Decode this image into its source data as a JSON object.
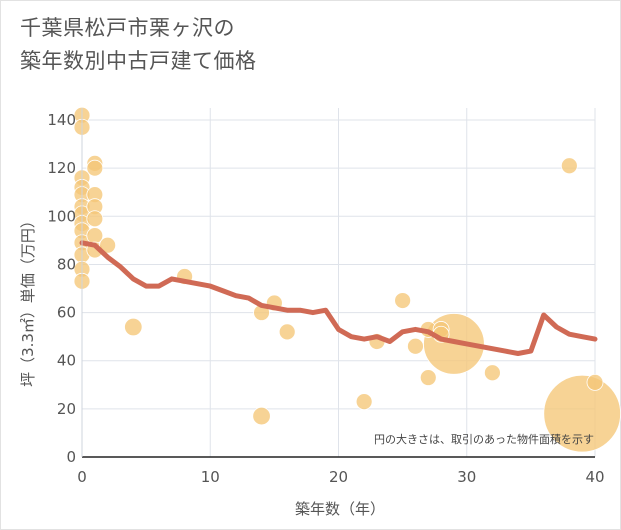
{
  "chart_data": {
    "type": "scatter",
    "title": "千葉県松戸市栗ヶ沢の\n築年数別中古戸建て価格",
    "xlabel": "築年数（年）",
    "ylabel": "坪（3.3㎡）単価（万円）",
    "xlim": [
      0,
      40
    ],
    "ylim": [
      0,
      145
    ],
    "xticks": [
      "0",
      "10",
      "20",
      "30",
      "40"
    ],
    "yticks": [
      "0",
      "20",
      "40",
      "60",
      "80",
      "100",
      "120",
      "140"
    ],
    "grid": true,
    "note": "円の大きさは、取引のあった物件面積を示す",
    "colors": {
      "bubble": "#f5c677",
      "line": "#d06a55",
      "grid": "#dfe3ea"
    },
    "series": [
      {
        "kind": "bubble",
        "points": [
          {
            "x": 0,
            "y": 142,
            "s": 1
          },
          {
            "x": 0,
            "y": 137,
            "s": 1
          },
          {
            "x": 0,
            "y": 116,
            "s": 1
          },
          {
            "x": 0,
            "y": 112,
            "s": 1
          },
          {
            "x": 0,
            "y": 109,
            "s": 1
          },
          {
            "x": 0,
            "y": 104,
            "s": 1
          },
          {
            "x": 0,
            "y": 101,
            "s": 1
          },
          {
            "x": 0,
            "y": 97,
            "s": 1
          },
          {
            "x": 0,
            "y": 94,
            "s": 1
          },
          {
            "x": 0,
            "y": 89,
            "s": 1
          },
          {
            "x": 0,
            "y": 84,
            "s": 1
          },
          {
            "x": 0,
            "y": 78,
            "s": 1
          },
          {
            "x": 0,
            "y": 73,
            "s": 1
          },
          {
            "x": 1,
            "y": 122,
            "s": 1
          },
          {
            "x": 1,
            "y": 120,
            "s": 1
          },
          {
            "x": 1,
            "y": 109,
            "s": 1
          },
          {
            "x": 1,
            "y": 104,
            "s": 1
          },
          {
            "x": 1,
            "y": 99,
            "s": 1
          },
          {
            "x": 1,
            "y": 92,
            "s": 1
          },
          {
            "x": 1,
            "y": 86,
            "s": 1
          },
          {
            "x": 2,
            "y": 88,
            "s": 1
          },
          {
            "x": 4,
            "y": 54,
            "s": 1.1
          },
          {
            "x": 8,
            "y": 75,
            "s": 1
          },
          {
            "x": 14,
            "y": 60,
            "s": 1
          },
          {
            "x": 14,
            "y": 17,
            "s": 1.1
          },
          {
            "x": 15,
            "y": 64,
            "s": 1
          },
          {
            "x": 16,
            "y": 52,
            "s": 1
          },
          {
            "x": 22,
            "y": 23,
            "s": 1
          },
          {
            "x": 23,
            "y": 48,
            "s": 1
          },
          {
            "x": 25,
            "y": 65,
            "s": 1
          },
          {
            "x": 26,
            "y": 46,
            "s": 1
          },
          {
            "x": 27,
            "y": 53,
            "s": 1
          },
          {
            "x": 27,
            "y": 33,
            "s": 1
          },
          {
            "x": 28,
            "y": 53,
            "s": 1
          },
          {
            "x": 28,
            "y": 51,
            "s": 1
          },
          {
            "x": 29,
            "y": 47,
            "s": 3.8
          },
          {
            "x": 32,
            "y": 35,
            "s": 1
          },
          {
            "x": 38,
            "y": 121,
            "s": 1
          },
          {
            "x": 39,
            "y": 18,
            "s": 4.8
          },
          {
            "x": 40,
            "y": 31,
            "s": 1
          }
        ]
      },
      {
        "kind": "line",
        "x": [
          0,
          1,
          2,
          3,
          4,
          5,
          6,
          7,
          8,
          9,
          10,
          11,
          12,
          13,
          14,
          15,
          16,
          17,
          18,
          19,
          20,
          21,
          22,
          23,
          24,
          25,
          26,
          27,
          28,
          29,
          30,
          31,
          32,
          33,
          34,
          35,
          36,
          37,
          38,
          39,
          40
        ],
        "y": [
          89,
          88,
          83,
          79,
          74,
          71,
          71,
          74,
          73,
          72,
          71,
          69,
          67,
          66,
          63,
          62,
          61,
          61,
          60,
          61,
          53,
          50,
          49,
          50,
          48,
          52,
          53,
          52,
          49,
          48,
          47,
          46,
          45,
          44,
          43,
          44,
          59,
          54,
          51,
          50,
          49
        ]
      }
    ]
  }
}
